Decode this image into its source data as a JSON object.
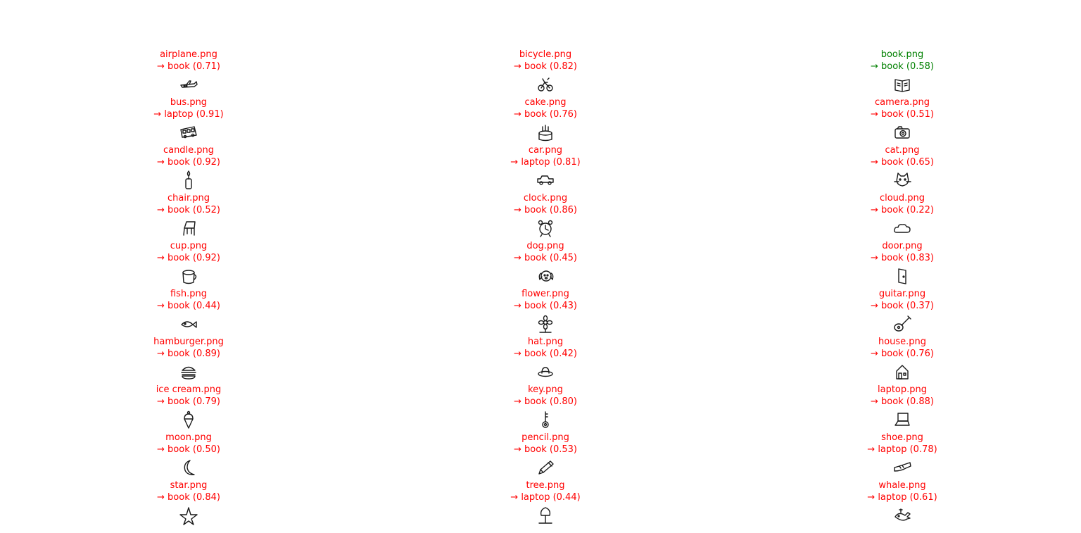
{
  "colors": {
    "correct": "#008000",
    "incorrect": "#ff0000",
    "sketch": "#1a1a1a"
  },
  "items": [
    {
      "file": "airplane.png",
      "pred": "→ book (0.71)",
      "correct": false,
      "icon": "airplane-icon"
    },
    {
      "file": "bicycle.png",
      "pred": "→ book (0.82)",
      "correct": false,
      "icon": "bicycle-icon"
    },
    {
      "file": "book.png",
      "pred": "→ book (0.58)",
      "correct": true,
      "icon": "book-icon"
    },
    {
      "file": "bus.png",
      "pred": "→ laptop (0.91)",
      "correct": false,
      "icon": "bus-icon"
    },
    {
      "file": "cake.png",
      "pred": "→ book (0.76)",
      "correct": false,
      "icon": "cake-icon"
    },
    {
      "file": "camera.png",
      "pred": "→ book (0.51)",
      "correct": false,
      "icon": "camera-icon"
    },
    {
      "file": "candle.png",
      "pred": "→ book (0.92)",
      "correct": false,
      "icon": "candle-icon"
    },
    {
      "file": "car.png",
      "pred": "→ laptop (0.81)",
      "correct": false,
      "icon": "car-icon"
    },
    {
      "file": "cat.png",
      "pred": "→ book (0.65)",
      "correct": false,
      "icon": "cat-icon"
    },
    {
      "file": "chair.png",
      "pred": "→ book (0.52)",
      "correct": false,
      "icon": "chair-icon"
    },
    {
      "file": "clock.png",
      "pred": "→ book (0.86)",
      "correct": false,
      "icon": "clock-icon"
    },
    {
      "file": "cloud.png",
      "pred": "→ book (0.22)",
      "correct": false,
      "icon": "cloud-icon"
    },
    {
      "file": "cup.png",
      "pred": "→ book (0.92)",
      "correct": false,
      "icon": "cup-icon"
    },
    {
      "file": "dog.png",
      "pred": "→ book (0.45)",
      "correct": false,
      "icon": "dog-icon"
    },
    {
      "file": "door.png",
      "pred": "→ book (0.83)",
      "correct": false,
      "icon": "door-icon"
    },
    {
      "file": "fish.png",
      "pred": "→ book (0.44)",
      "correct": false,
      "icon": "fish-icon"
    },
    {
      "file": "flower.png",
      "pred": "→ book (0.43)",
      "correct": false,
      "icon": "flower-icon"
    },
    {
      "file": "guitar.png",
      "pred": "→ book (0.37)",
      "correct": false,
      "icon": "guitar-icon"
    },
    {
      "file": "hamburger.png",
      "pred": "→ book (0.89)",
      "correct": false,
      "icon": "hamburger-icon"
    },
    {
      "file": "hat.png",
      "pred": "→ book (0.42)",
      "correct": false,
      "icon": "hat-icon"
    },
    {
      "file": "house.png",
      "pred": "→ book (0.76)",
      "correct": false,
      "icon": "house-icon"
    },
    {
      "file": "ice cream.png",
      "pred": "→ book (0.79)",
      "correct": false,
      "icon": "ice-cream-icon"
    },
    {
      "file": "key.png",
      "pred": "→ book (0.80)",
      "correct": false,
      "icon": "key-icon"
    },
    {
      "file": "laptop.png",
      "pred": "→ book (0.88)",
      "correct": false,
      "icon": "laptop-icon"
    },
    {
      "file": "moon.png",
      "pred": "→ book (0.50)",
      "correct": false,
      "icon": "moon-icon"
    },
    {
      "file": "pencil.png",
      "pred": "→ book (0.53)",
      "correct": false,
      "icon": "pencil-icon"
    },
    {
      "file": "shoe.png",
      "pred": "→ laptop (0.78)",
      "correct": false,
      "icon": "shoe-icon"
    },
    {
      "file": "star.png",
      "pred": "→ book (0.84)",
      "correct": false,
      "icon": "star-icon"
    },
    {
      "file": "tree.png",
      "pred": "→ laptop (0.44)",
      "correct": false,
      "icon": "tree-icon"
    },
    {
      "file": "whale.png",
      "pred": "→ laptop (0.61)",
      "correct": false,
      "icon": "whale-icon"
    }
  ]
}
